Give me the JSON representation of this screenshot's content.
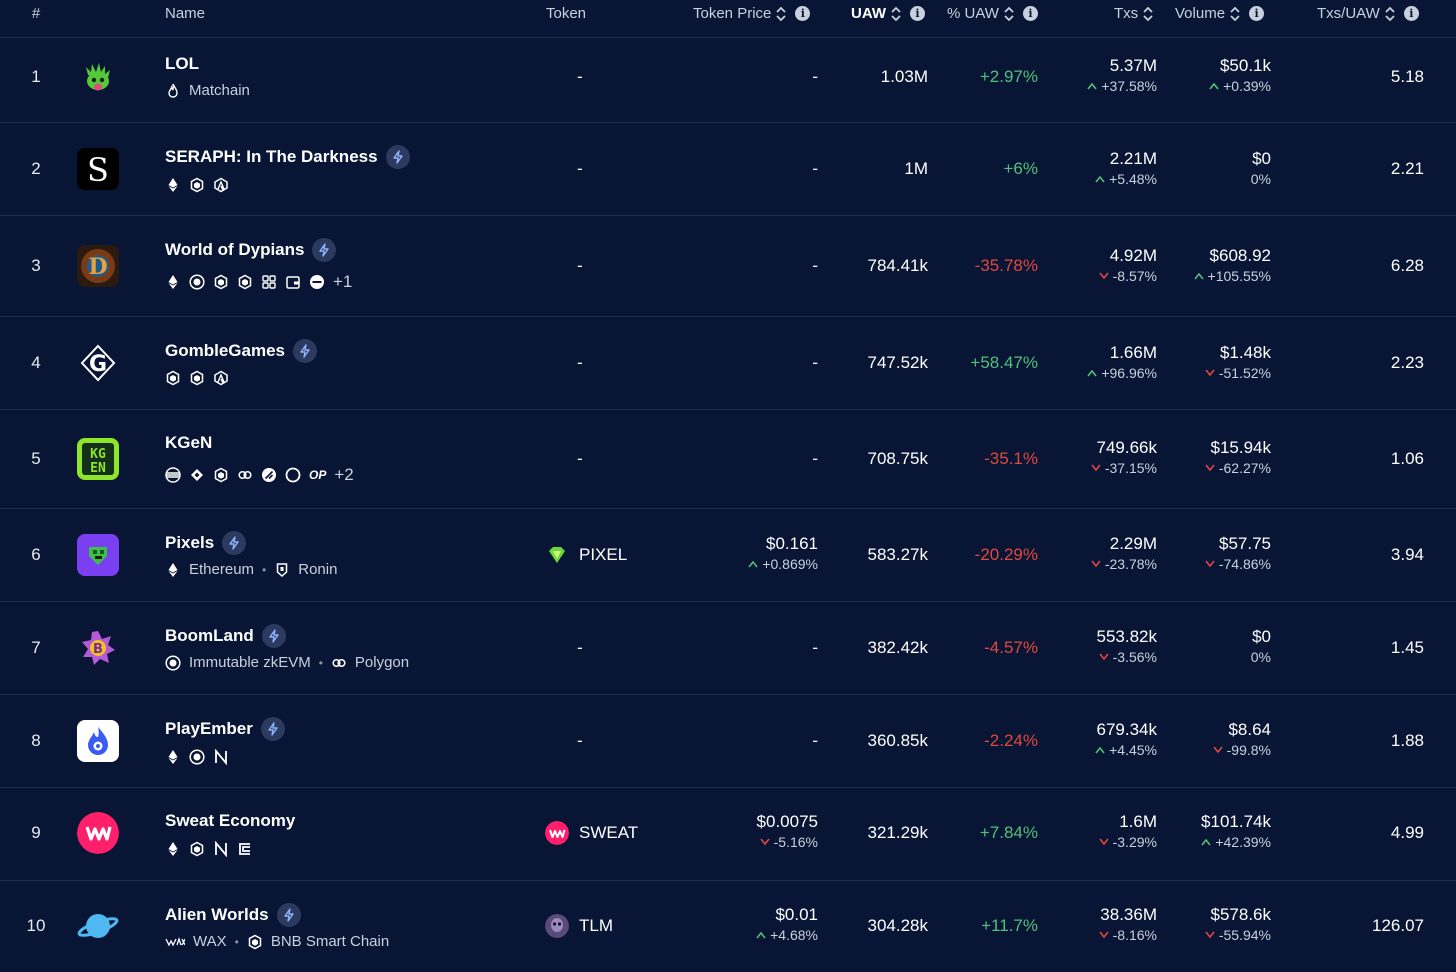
{
  "header": {
    "rank": "#",
    "name": "Name",
    "token": "Token",
    "token_price": "Token Price",
    "uaw": "UAW",
    "pct_uaw": "% UAW",
    "txs": "Txs",
    "volume": "Volume",
    "txs_uaw": "Txs/UAW"
  },
  "colors": {
    "background": "#081534",
    "positive": "#52c17a",
    "negative": "#e2483f",
    "divider": "#1f2c4a"
  },
  "rows": [
    {
      "rank": "1",
      "name": "LOL",
      "chains_text": "Matchain",
      "token": "-",
      "price": "-",
      "uaw": "1.03M",
      "pct_uaw": "+2.97%",
      "txs": "5.37M",
      "txs_chg": "+37.58%",
      "volume": "$50.1k",
      "volume_chg": "+0.39%",
      "txs_uaw": "5.18"
    },
    {
      "rank": "2",
      "name": "SERAPH: In The Darkness",
      "token": "-",
      "price": "-",
      "uaw": "1M",
      "pct_uaw": "+6%",
      "txs": "2.21M",
      "txs_chg": "+5.48%",
      "volume": "$0",
      "volume_chg": "0%",
      "txs_uaw": "2.21"
    },
    {
      "rank": "3",
      "name": "World of Dypians",
      "more": "+1",
      "token": "-",
      "price": "-",
      "uaw": "784.41k",
      "pct_uaw": "-35.78%",
      "txs": "4.92M",
      "txs_chg": "-8.57%",
      "volume": "$608.92",
      "volume_chg": "+105.55%",
      "txs_uaw": "6.28"
    },
    {
      "rank": "4",
      "name": "GombleGames",
      "token": "-",
      "price": "-",
      "uaw": "747.52k",
      "pct_uaw": "+58.47%",
      "txs": "1.66M",
      "txs_chg": "+96.96%",
      "volume": "$1.48k",
      "volume_chg": "-51.52%",
      "txs_uaw": "2.23"
    },
    {
      "rank": "5",
      "name": "KGeN",
      "more": "+2",
      "op": "OP",
      "token": "-",
      "price": "-",
      "uaw": "708.75k",
      "pct_uaw": "-35.1%",
      "txs": "749.66k",
      "txs_chg": "-37.15%",
      "volume": "$15.94k",
      "volume_chg": "-62.27%",
      "txs_uaw": "1.06"
    },
    {
      "rank": "6",
      "name": "Pixels",
      "chain_a": "Ethereum",
      "chain_b": "Ronin",
      "token": "PIXEL",
      "price": "$0.161",
      "price_chg": "+0.869%",
      "uaw": "583.27k",
      "pct_uaw": "-20.29%",
      "txs": "2.29M",
      "txs_chg": "-23.78%",
      "volume": "$57.75",
      "volume_chg": "-74.86%",
      "txs_uaw": "3.94"
    },
    {
      "rank": "7",
      "name": "BoomLand",
      "chain_a": "Immutable zkEVM",
      "chain_b": "Polygon",
      "token": "-",
      "price": "-",
      "uaw": "382.42k",
      "pct_uaw": "-4.57%",
      "txs": "553.82k",
      "txs_chg": "-3.56%",
      "volume": "$0",
      "volume_chg": "0%",
      "txs_uaw": "1.45"
    },
    {
      "rank": "8",
      "name": "PlayEmber",
      "token": "-",
      "price": "-",
      "uaw": "360.85k",
      "pct_uaw": "-2.24%",
      "txs": "679.34k",
      "txs_chg": "+4.45%",
      "volume": "$8.64",
      "volume_chg": "-99.8%",
      "txs_uaw": "1.88"
    },
    {
      "rank": "9",
      "name": "Sweat Economy",
      "token": "SWEAT",
      "price": "$0.0075",
      "price_chg": "-5.16%",
      "uaw": "321.29k",
      "pct_uaw": "+7.84%",
      "txs": "1.6M",
      "txs_chg": "-3.29%",
      "volume": "$101.74k",
      "volume_chg": "+42.39%",
      "txs_uaw": "4.99"
    },
    {
      "rank": "10",
      "name": "Alien Worlds",
      "chain_a": "WAX",
      "chain_b": "BNB Smart Chain",
      "token": "TLM",
      "price": "$0.01",
      "price_chg": "+4.68%",
      "uaw": "304.28k",
      "pct_uaw": "+11.7%",
      "txs": "38.36M",
      "txs_chg": "-8.16%",
      "volume": "$578.6k",
      "volume_chg": "-55.94%",
      "txs_uaw": "126.07"
    }
  ]
}
